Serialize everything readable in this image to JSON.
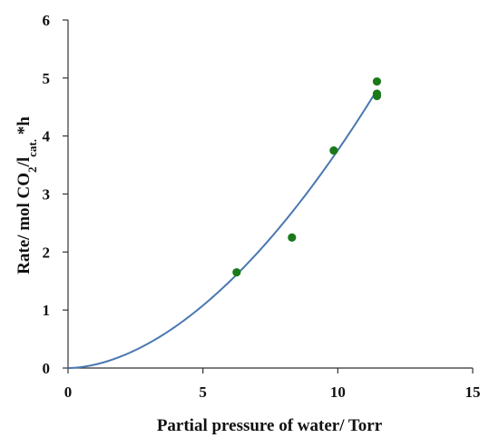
{
  "chart_data": {
    "type": "scatter",
    "xlabel": "Partial pressure of water/ Torr",
    "ylabel_parts": {
      "prefix": "Rate/ mol CO",
      "sub1": "2",
      "mid": "/l",
      "sub2": "cat.",
      "suffix": " *h"
    },
    "xlim": [
      0,
      15
    ],
    "ylim": [
      0,
      6
    ],
    "x_ticks": [
      "0",
      "5",
      "10",
      "15"
    ],
    "y_ticks": [
      "0",
      "1",
      "2",
      "3",
      "4",
      "5",
      "6"
    ],
    "grid": false,
    "legend": "none",
    "series": [
      {
        "kind": "points",
        "color": "#1a7a1a",
        "points": [
          {
            "x": 6.25,
            "y": 1.65
          },
          {
            "x": 8.3,
            "y": 2.25
          },
          {
            "x": 9.85,
            "y": 3.75
          },
          {
            "x": 11.45,
            "y": 4.94
          },
          {
            "x": 11.45,
            "y": 4.73
          },
          {
            "x": 11.45,
            "y": 4.69
          }
        ]
      },
      {
        "kind": "fit-curve",
        "color": "#4a78b0",
        "x_range": [
          0,
          11.45
        ],
        "form": "y = a*x^b",
        "a": 0.0595,
        "b": 1.8
      }
    ]
  }
}
